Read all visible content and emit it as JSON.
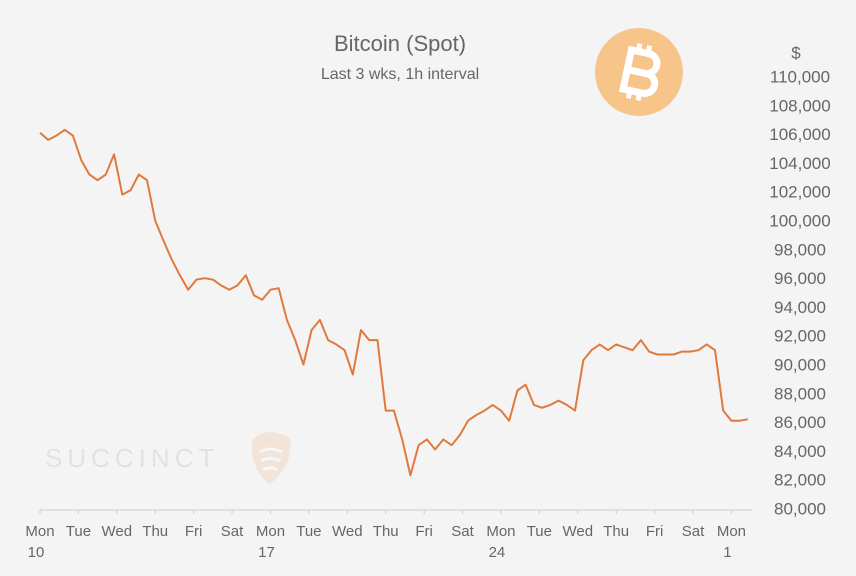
{
  "chart_data": {
    "type": "line",
    "title": "Bitcoin (Spot)",
    "subtitle": "Last 3 wks, 1h interval",
    "y_unit": "$",
    "watermark": "SUCCINCT",
    "x": [
      0,
      6,
      12,
      18,
      24,
      30,
      36,
      42,
      48,
      54,
      60,
      66,
      72,
      78,
      84,
      90,
      96,
      102,
      108,
      114,
      120,
      126,
      132,
      138,
      144,
      150,
      156,
      162,
      168,
      174,
      180,
      186,
      192,
      198,
      204,
      210,
      216,
      222,
      228,
      234,
      240,
      246,
      252,
      258,
      264,
      270,
      276,
      282,
      288,
      294,
      300,
      306,
      312,
      318,
      324,
      330,
      336,
      342,
      348,
      354,
      360,
      366,
      372,
      378,
      384,
      390,
      396,
      402,
      408,
      414,
      420,
      426,
      432,
      438,
      444,
      450,
      456,
      462,
      468,
      474,
      480,
      486,
      492,
      498,
      504,
      510,
      516
    ],
    "series": [
      {
        "name": "Bitcoin",
        "color": "#e07a3c",
        "values": [
          106200,
          105700,
          106000,
          106400,
          106000,
          104300,
          103300,
          102900,
          103300,
          104700,
          101900,
          102200,
          103300,
          102900,
          100100,
          98700,
          97400,
          96300,
          95300,
          96000,
          96100,
          96000,
          95600,
          95300,
          95600,
          96300,
          94900,
          94600,
          95300,
          95400,
          93200,
          91800,
          90100,
          92500,
          93200,
          91800,
          91500,
          91100,
          89400,
          92500,
          91800,
          91800,
          86900,
          86900,
          84900,
          82400,
          84500,
          84900,
          84200,
          84900,
          84500,
          85200,
          86200,
          86600,
          86900,
          87300,
          86900,
          86200,
          88300,
          88700,
          87300,
          87100,
          87300,
          87600,
          87300,
          86900,
          90400,
          91100,
          91500,
          91100,
          91500,
          91300,
          91100,
          91800,
          91000,
          90800,
          90800,
          90800,
          91000,
          91000,
          91100,
          91500,
          91100,
          86900,
          86200,
          86200,
          86300
        ]
      }
    ],
    "xlim": [
      0,
      519
    ],
    "xticks": [
      {
        "value": 0,
        "label": "Mon",
        "sublabel": "10"
      },
      {
        "value": 28,
        "label": "Tue"
      },
      {
        "value": 56,
        "label": "Wed"
      },
      {
        "value": 84,
        "label": "Thu"
      },
      {
        "value": 112,
        "label": "Fri"
      },
      {
        "value": 140,
        "label": "Sat"
      },
      {
        "value": 168,
        "label": "Mon",
        "sublabel": "17"
      },
      {
        "value": 196,
        "label": "Tue"
      },
      {
        "value": 224,
        "label": "Wed"
      },
      {
        "value": 252,
        "label": "Thu"
      },
      {
        "value": 280,
        "label": "Fri"
      },
      {
        "value": 308,
        "label": "Sat"
      },
      {
        "value": 336,
        "label": "Mon",
        "sublabel": "24"
      },
      {
        "value": 364,
        "label": "Tue"
      },
      {
        "value": 392,
        "label": "Wed"
      },
      {
        "value": 420,
        "label": "Thu"
      },
      {
        "value": 448,
        "label": "Fri"
      },
      {
        "value": 476,
        "label": "Sat"
      },
      {
        "value": 504,
        "label": "Mon",
        "sublabel": "1"
      }
    ],
    "ylim": [
      80000,
      110000
    ],
    "yticks": [
      {
        "value": 80000,
        "label": "80,000"
      },
      {
        "value": 82000,
        "label": "82,000"
      },
      {
        "value": 84000,
        "label": "84,000"
      },
      {
        "value": 86000,
        "label": "86,000"
      },
      {
        "value": 88000,
        "label": "88,000"
      },
      {
        "value": 90000,
        "label": "90,000"
      },
      {
        "value": 92000,
        "label": "92,000"
      },
      {
        "value": 94000,
        "label": "94,000"
      },
      {
        "value": 96000,
        "label": "96,000"
      },
      {
        "value": 98000,
        "label": "98,000"
      },
      {
        "value": 100000,
        "label": "100,000"
      },
      {
        "value": 102000,
        "label": "102,000"
      },
      {
        "value": 104000,
        "label": "104,000"
      },
      {
        "value": 106000,
        "label": "106,000"
      },
      {
        "value": 108000,
        "label": "108,000"
      },
      {
        "value": 110000,
        "label": "110,000"
      }
    ],
    "grid": false
  }
}
